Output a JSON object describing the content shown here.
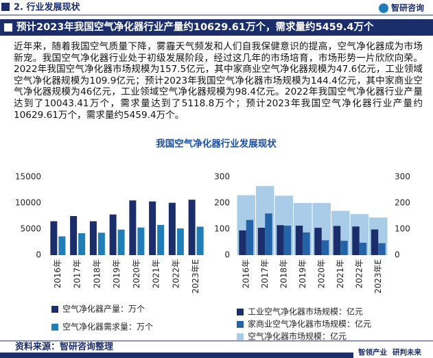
{
  "header": {
    "section": "2. 行业发展现状",
    "logo": "智研咨询"
  },
  "banner": "预计2023年我国空气净化器行业产量约10629.61万个，需求量约5459.4万个",
  "paragraph": "近年来，随着我国空气质量下降，雾霾天气频发和人们自我保健意识的提高，空气净化器成为市场新宠。我国空气净化器行业处于初级发展阶段，经过这几年的市场培育，市场形势一片欣欣向荣。2022年我国空气净化器市场规模为157.5亿元，其中家商业空气净化器规模为47.6亿元，工业领域空气净化器规模为109.9亿元；预计2023年我国空气净化器市场规模为144.4亿元，其中家商业空气净化器规模为46亿元，工业领域空气净化器规模为98.4亿元。2022年我国空气净化器行业产量达到了10043.41万个，需求量达到了5118.8万个；预计2023年我国空气净化器行业产量约10629.61万个，需求量约5459.4万个。",
  "charts_title": "我国空气净化器行业发展现状",
  "chart_data": [
    {
      "type": "bar",
      "categories": [
        "2016年",
        "2017年",
        "2018年",
        "2019年",
        "2020年",
        "2021年",
        "2022年",
        "2023年E"
      ],
      "series": [
        {
          "name": "空气净化器产量：万个",
          "color": "#1b2d6b",
          "values": [
            6500,
            7500,
            6500,
            7800,
            10500,
            10300,
            10043.41,
            10629.61
          ]
        },
        {
          "name": "空气净化器需求量：万个",
          "color": "#1f7db8",
          "values": [
            3600,
            4200,
            4300,
            4900,
            5300,
            5800,
            5118.8,
            5459.4
          ]
        }
      ],
      "ylim": [
        0,
        15000
      ],
      "yticks": [
        0,
        5000,
        10000,
        15000
      ]
    },
    {
      "type": "overlay_bar",
      "categories": [
        "2016年",
        "2017年",
        "2018年",
        "2019年",
        "2020年",
        "2021年",
        "2022年",
        "2023年E"
      ],
      "series": [
        {
          "name": "工业空气净化器市场规模：亿元",
          "color": "#1b2d6b",
          "values": [
            95,
            105,
            115,
            113,
            105,
            112,
            109.9,
            98.4
          ]
        },
        {
          "name": "家商业空气净化器市场规模：亿元",
          "color": "#2563a8",
          "values": [
            135,
            160,
            113,
            87,
            57,
            55,
            47.6,
            46
          ]
        },
        {
          "name": "空气净化器市场规模：亿元",
          "color": "#a9cde8",
          "values": [
            230,
            265,
            228,
            200,
            200,
            170,
            157.5,
            144.4
          ]
        }
      ],
      "ylim": [
        0,
        300
      ],
      "yticks": [
        0,
        100,
        200,
        300
      ],
      "y2lim": [
        0,
        300
      ],
      "y2ticks": [
        0,
        100,
        200,
        300
      ]
    }
  ],
  "source": "资料来源：智研咨询整理",
  "footer": [
    "智领产业",
    "研判未来"
  ]
}
